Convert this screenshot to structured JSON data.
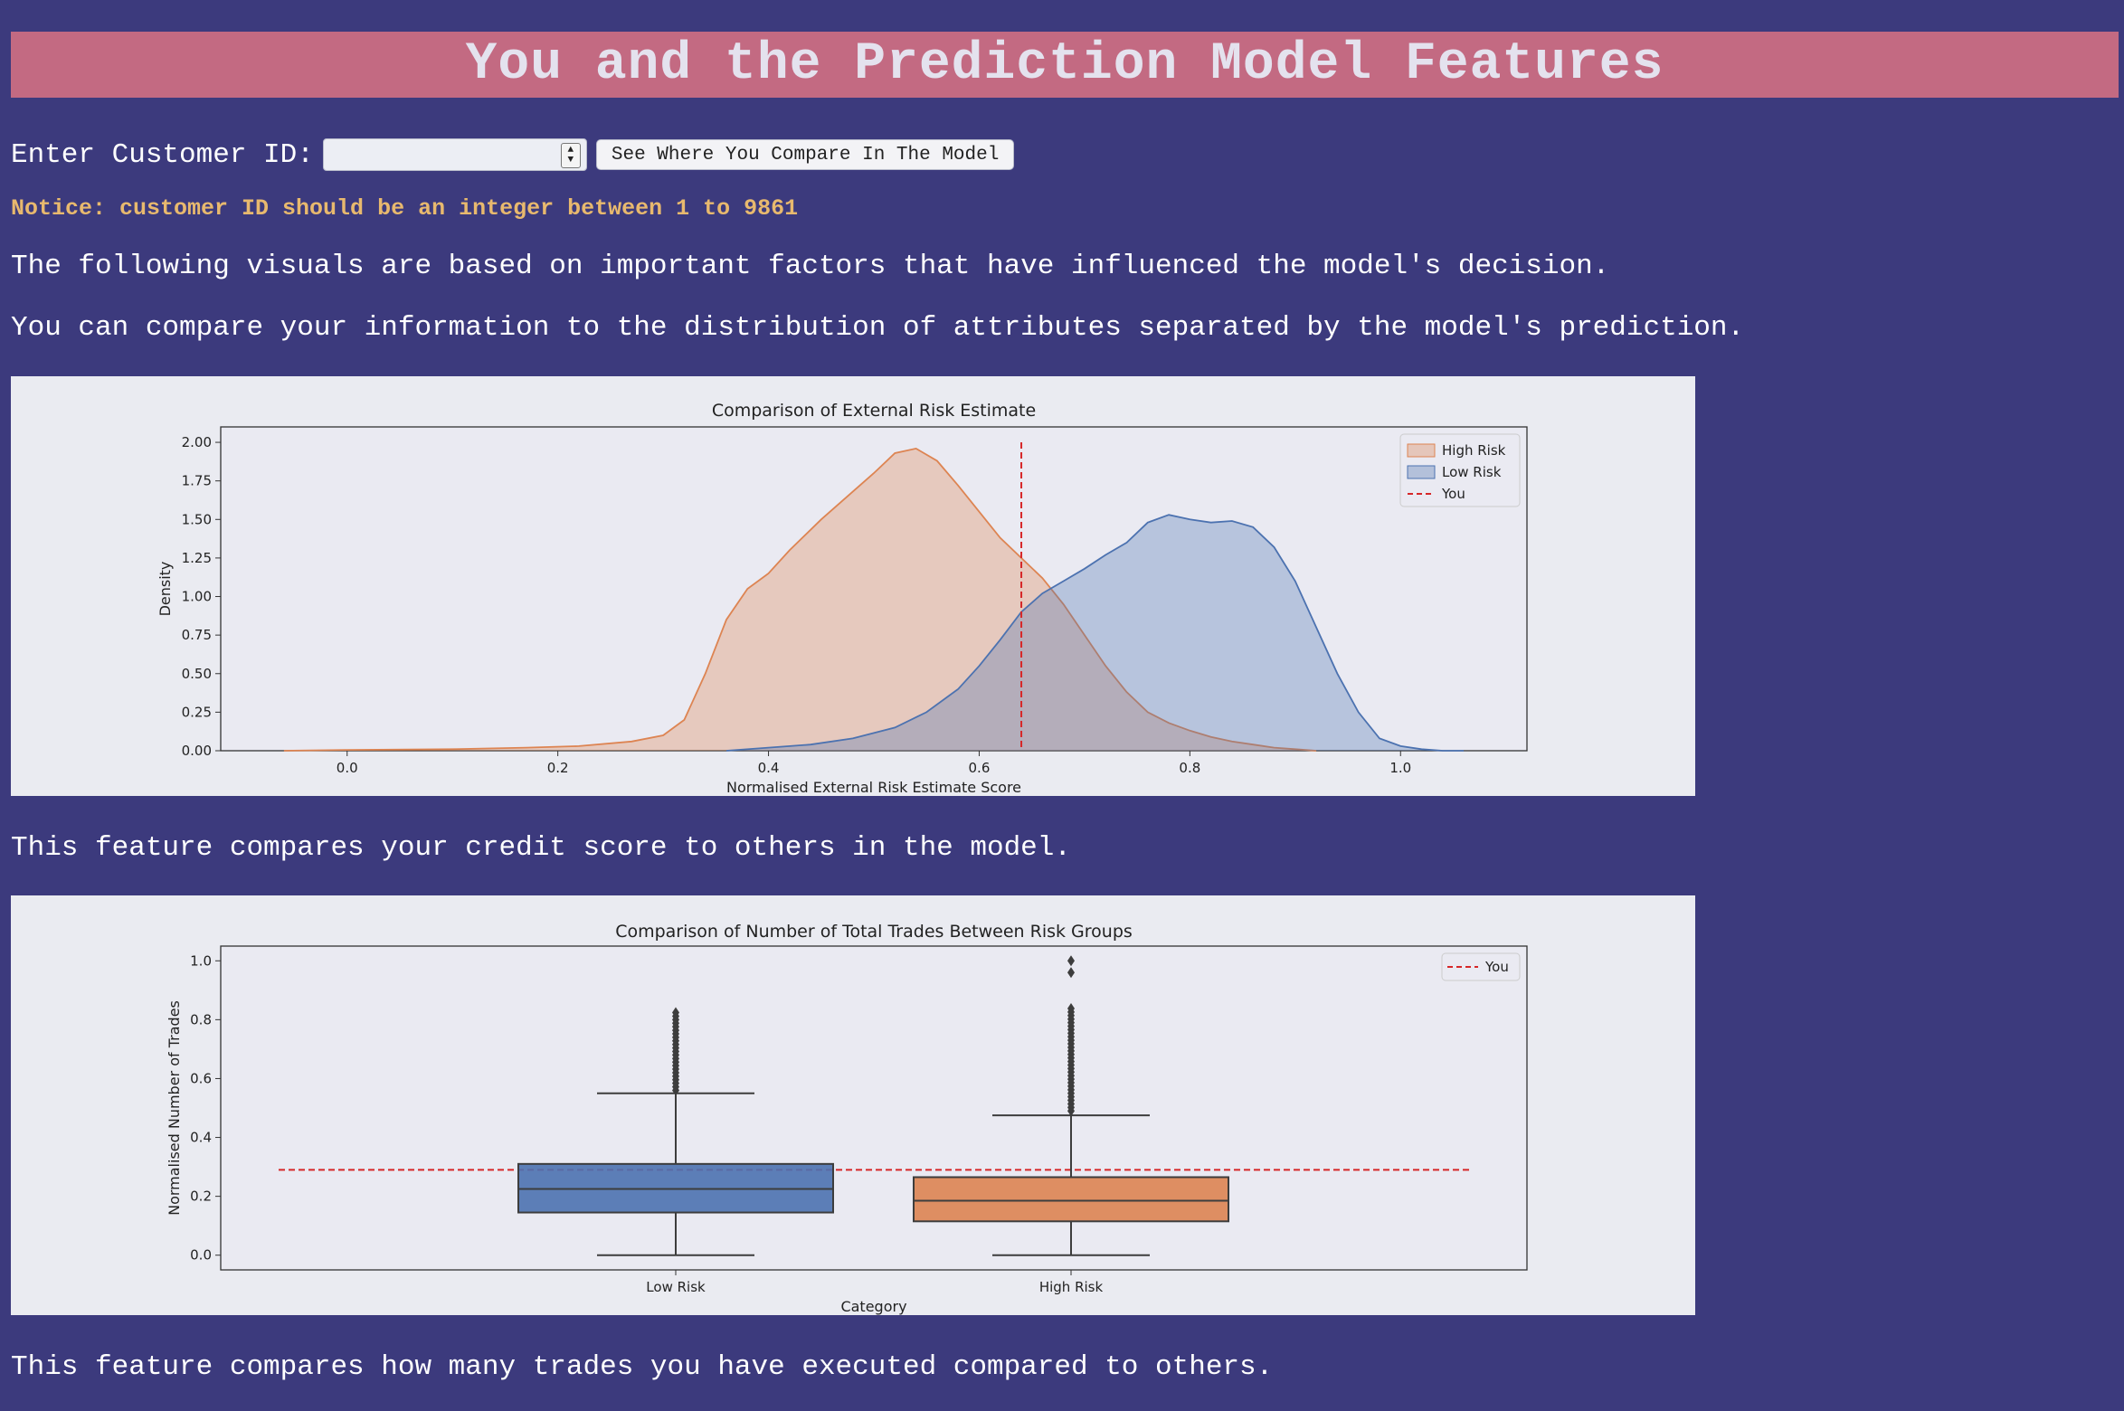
{
  "page": {
    "title": "You and the Prediction Model Features",
    "customer_id_label": "Enter Customer ID:",
    "customer_id_value": "",
    "compare_button_label": "See Where You Compare In The Model",
    "notice": "Notice: customer ID should be an integer between 1 to 9861",
    "intro_1": "The following visuals are based on important factors that have influenced the model's decision.",
    "intro_2": "You can compare your information to the distribution of attributes separated by the model's prediction.",
    "caption_1": "This feature compares your credit score to others in the model.",
    "caption_2": "This feature compares how many trades you have executed compared to others."
  },
  "colors": {
    "background": "#3c3a7d",
    "banner": "#c36a82",
    "notice": "#e8b96e",
    "high_risk": "#dd8452",
    "low_risk": "#4c72b0",
    "you_line": "#d62728"
  },
  "chart_data": [
    {
      "type": "area",
      "title": "Comparison of External Risk Estimate",
      "xlabel": "Normalised External Risk Estimate Score",
      "ylabel": "Density",
      "xlim": [
        -0.12,
        1.12
      ],
      "ylim": [
        0,
        2.1
      ],
      "xticks": [
        "0.0",
        "0.2",
        "0.4",
        "0.6",
        "0.8",
        "1.0"
      ],
      "xtick_values": [
        0,
        0.2,
        0.4,
        0.6,
        0.8,
        1.0
      ],
      "yticks": [
        "0.00",
        "0.25",
        "0.50",
        "0.75",
        "1.00",
        "1.25",
        "1.50",
        "1.75",
        "2.00"
      ],
      "ytick_values": [
        0,
        0.25,
        0.5,
        0.75,
        1.0,
        1.25,
        1.5,
        1.75,
        2.0
      ],
      "legend": [
        "High Risk",
        "Low Risk",
        "You"
      ],
      "legend_position": "top-right",
      "series": [
        {
          "name": "High Risk",
          "x": [
            -0.06,
            0.0,
            0.1,
            0.17,
            0.22,
            0.27,
            0.3,
            0.32,
            0.34,
            0.36,
            0.38,
            0.4,
            0.42,
            0.45,
            0.48,
            0.5,
            0.52,
            0.54,
            0.56,
            0.58,
            0.6,
            0.62,
            0.64,
            0.66,
            0.68,
            0.7,
            0.72,
            0.74,
            0.76,
            0.78,
            0.8,
            0.82,
            0.84,
            0.86,
            0.88,
            0.9,
            0.92
          ],
          "y": [
            0,
            0.005,
            0.01,
            0.02,
            0.03,
            0.06,
            0.1,
            0.2,
            0.5,
            0.85,
            1.05,
            1.15,
            1.3,
            1.5,
            1.68,
            1.8,
            1.93,
            1.96,
            1.88,
            1.72,
            1.55,
            1.38,
            1.25,
            1.12,
            0.95,
            0.75,
            0.55,
            0.38,
            0.25,
            0.18,
            0.13,
            0.09,
            0.06,
            0.04,
            0.02,
            0.01,
            0.0
          ]
        },
        {
          "name": "Low Risk",
          "x": [
            0.36,
            0.4,
            0.44,
            0.48,
            0.52,
            0.55,
            0.58,
            0.6,
            0.62,
            0.64,
            0.66,
            0.68,
            0.7,
            0.72,
            0.74,
            0.76,
            0.78,
            0.8,
            0.82,
            0.84,
            0.86,
            0.88,
            0.9,
            0.92,
            0.94,
            0.96,
            0.98,
            1.0,
            1.02,
            1.04,
            1.06
          ],
          "y": [
            0.0,
            0.02,
            0.04,
            0.08,
            0.15,
            0.25,
            0.4,
            0.55,
            0.72,
            0.9,
            1.02,
            1.1,
            1.18,
            1.27,
            1.35,
            1.48,
            1.53,
            1.5,
            1.48,
            1.49,
            1.45,
            1.32,
            1.1,
            0.8,
            0.5,
            0.25,
            0.08,
            0.03,
            0.01,
            0.0,
            0.0
          ]
        }
      ],
      "you_value": 0.64
    },
    {
      "type": "box",
      "title": "Comparison of Number of Total Trades Between Risk Groups",
      "xlabel": "Category",
      "ylabel": "Normalised Number of Trades",
      "categories": [
        "Low Risk",
        "High Risk"
      ],
      "ylim": [
        -0.05,
        1.05
      ],
      "yticks": [
        "0.0",
        "0.2",
        "0.4",
        "0.6",
        "0.8",
        "1.0"
      ],
      "ytick_values": [
        0,
        0.2,
        0.4,
        0.6,
        0.8,
        1.0
      ],
      "legend": [
        "You"
      ],
      "legend_position": "top-right",
      "boxes": [
        {
          "name": "Low Risk",
          "min": 0.0,
          "q1": 0.145,
          "median": 0.225,
          "q3": 0.31,
          "max": 0.55,
          "outlier_min": 0.56,
          "outlier_max": 0.83
        },
        {
          "name": "High Risk",
          "min": 0.0,
          "q1": 0.115,
          "median": 0.185,
          "q3": 0.265,
          "max": 0.475,
          "outlier_min": 0.49,
          "outlier_max": 0.84,
          "extra_outliers": [
            0.96,
            1.0
          ]
        }
      ],
      "you_value": 0.29
    }
  ]
}
